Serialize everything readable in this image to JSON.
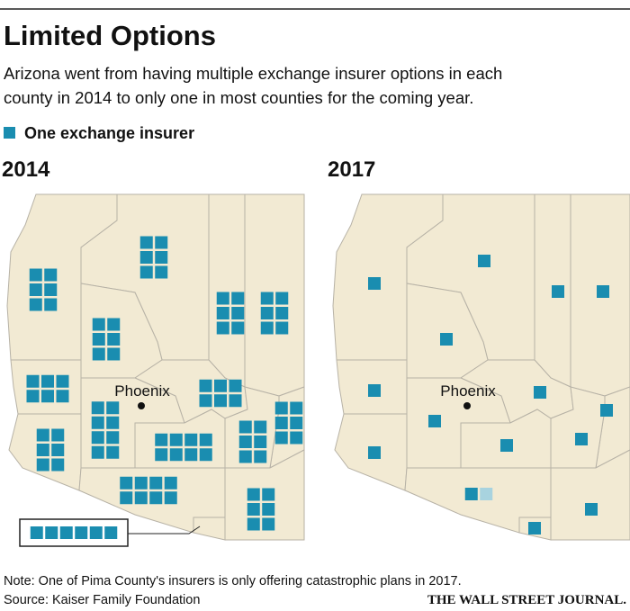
{
  "header": {
    "title": "Limited Options",
    "subtitle_lines": [
      "Arizona went from having multiple exchange insurer options in each",
      "county in 2014 to only one in most counties for the coming year."
    ]
  },
  "legend": {
    "label": "One exchange insurer",
    "color": "#1a8db0"
  },
  "city_label": "Phoenix",
  "maps": [
    {
      "year": "2014",
      "insurer_counts": [
        6,
        6,
        6,
        6,
        6,
        6,
        6,
        6,
        6,
        8,
        8,
        6,
        8,
        6,
        6
      ],
      "catastrophic_only": [
        0,
        0,
        0,
        0,
        0,
        0,
        0,
        0,
        0,
        0,
        0,
        0,
        0,
        0,
        0
      ]
    },
    {
      "year": "2017",
      "insurer_counts": [
        1,
        1,
        1,
        1,
        1,
        1,
        1,
        1,
        1,
        1,
        1,
        1,
        2,
        1,
        1
      ],
      "catastrophic_only": [
        0,
        0,
        0,
        0,
        0,
        0,
        0,
        0,
        0,
        0,
        0,
        0,
        1,
        0,
        0
      ]
    }
  ],
  "catastrophic_color": "#a8d3df",
  "footer": {
    "note": "Note: One of Pima County's insurers is only offering catastrophic plans in 2017.",
    "source": "Source: Kaiser Family Foundation",
    "brand": "THE WALL STREET JOURNAL."
  }
}
